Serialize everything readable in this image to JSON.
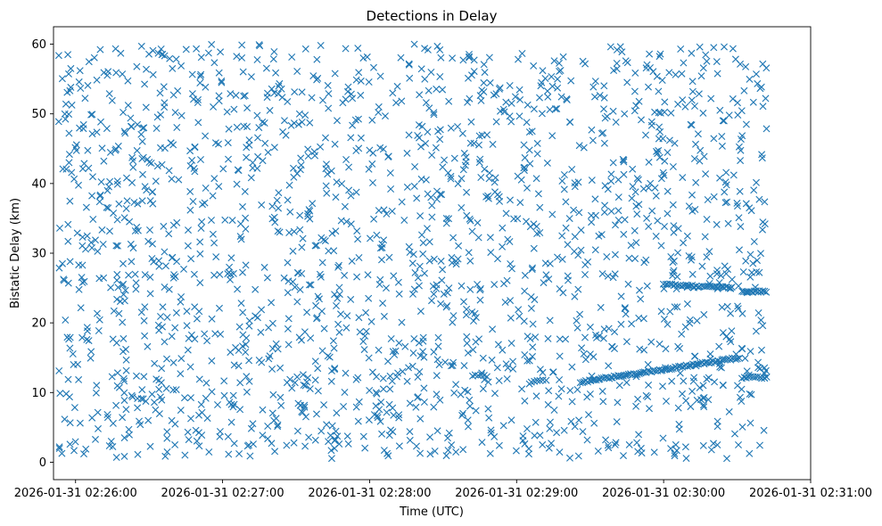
{
  "chart_data": {
    "type": "scatter",
    "title": "Detections in Delay",
    "xlabel": "Time (UTC)",
    "ylabel": "Bistatic Delay (km)",
    "marker": "x",
    "color": "#1f77b4",
    "grid": false,
    "legend": "none",
    "x_ticks": [
      "2026-01-31 02:26:00",
      "2026-01-31 02:27:00",
      "2026-01-31 02:28:00",
      "2026-01-31 02:29:00",
      "2026-01-31 02:30:00",
      "2026-01-31 02:31:00"
    ],
    "xlim": [
      "2026-01-31 02:25:51",
      "2026-01-31 02:31:00"
    ],
    "ylim": [
      -2.5,
      62.5
    ],
    "y_ticks": [
      0,
      10,
      20,
      30,
      40,
      50,
      60
    ],
    "series": [
      {
        "tracks": [
          {
            "x": [
              "2026-01-31 02:29:26",
              "2026-01-31 02:30:31"
            ],
            "y": [
              11.5,
              15.0
            ],
            "count": 90
          },
          {
            "x": [
              "2026-01-31 02:30:00",
              "2026-01-31 02:30:28"
            ],
            "y": [
              25.5,
              25.0
            ],
            "count": 35
          },
          {
            "x": [
              "2026-01-31 02:30:32",
              "2026-01-31 02:30:42"
            ],
            "y": [
              24.6,
              24.4
            ],
            "count": 15
          },
          {
            "x": [
              "2026-01-31 02:30:32",
              "2026-01-31 02:30:42"
            ],
            "y": [
              12.1,
              12.2
            ],
            "count": 12
          },
          {
            "x": [
              "2026-01-31 02:28:42",
              "2026-01-31 02:28:48"
            ],
            "y": [
              12.4,
              12.4
            ],
            "count": 6
          },
          {
            "x": [
              "2026-01-31 02:29:06",
              "2026-01-31 02:29:12"
            ],
            "y": [
              11.6,
              11.8
            ],
            "count": 6
          }
        ],
        "clutter": {
          "x_range": [
            "2026-01-31 02:25:53",
            "2026-01-31 02:30:42"
          ],
          "y_range": [
            0.5,
            60
          ],
          "count": 1900
        }
      }
    ]
  }
}
